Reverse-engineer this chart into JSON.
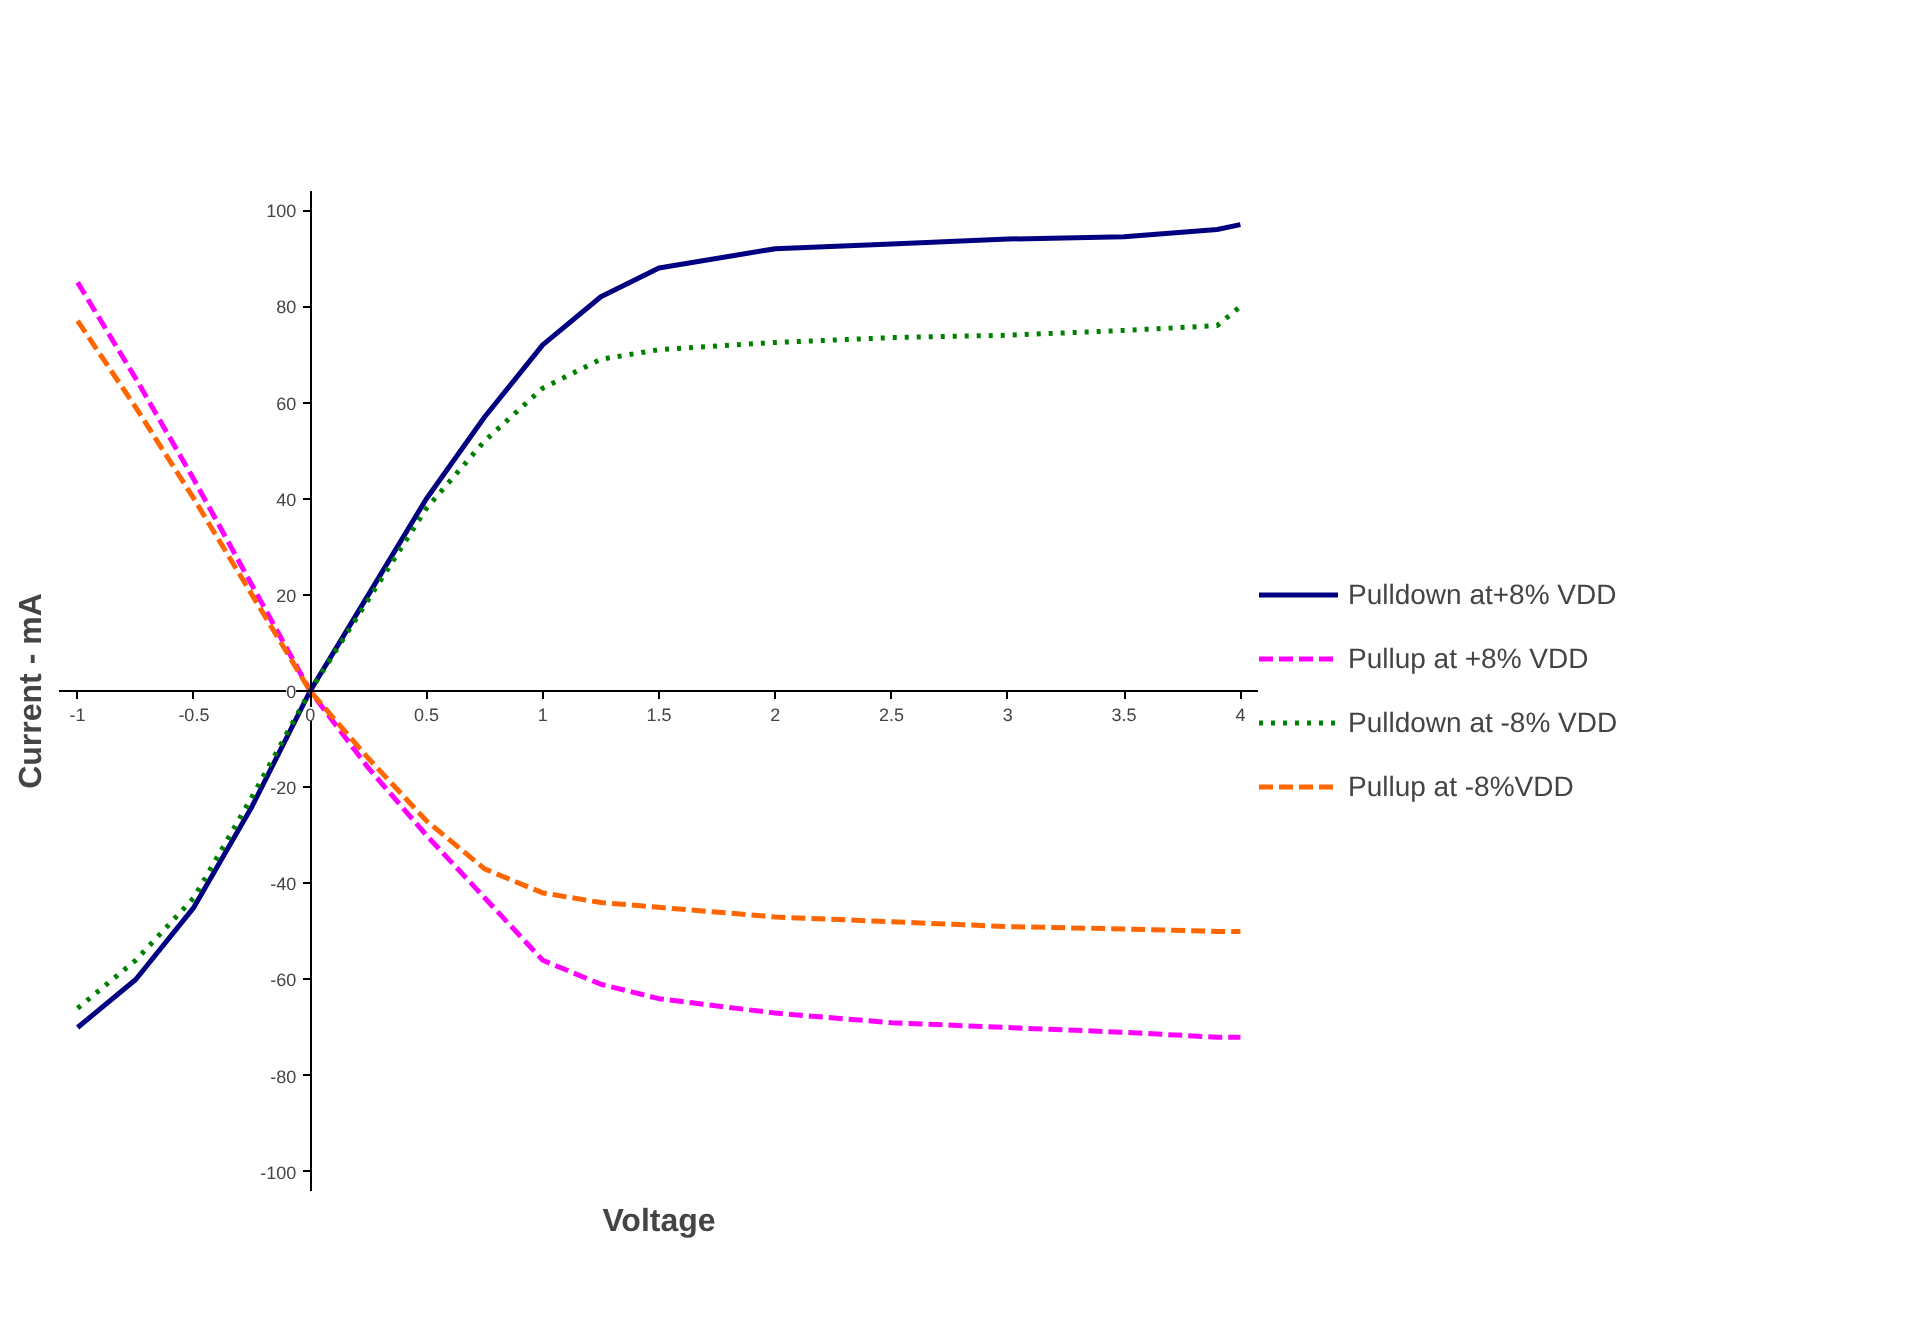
{
  "chart_data": {
    "type": "line",
    "xlabel": "Voltage",
    "ylabel": "Current - mA",
    "xlim": [
      -1.08,
      4.08
    ],
    "ylim": [
      -104,
      104
    ],
    "xticks": [
      -1,
      -0.5,
      0,
      0.5,
      1,
      1.5,
      2,
      2.5,
      3,
      3.5,
      4
    ],
    "yticks": [
      -100,
      -80,
      -60,
      -40,
      -20,
      0,
      20,
      40,
      60,
      80,
      100
    ],
    "grid": false,
    "legend": "right",
    "marker": "none",
    "x": [
      -1,
      -0.75,
      -0.5,
      -0.25,
      0,
      0.25,
      0.5,
      0.75,
      1,
      1.25,
      1.5,
      2,
      2.5,
      3,
      3.5,
      3.9,
      4
    ],
    "series": [
      {
        "name": "Pulldown at+8% VDD",
        "color": "#000080",
        "line_style": "solid",
        "values": [
          -70,
          -60,
          -45,
          -24,
          0,
          20,
          40,
          57,
          72,
          82,
          88,
          92,
          93,
          94,
          94.5,
          96,
          97
        ]
      },
      {
        "name": "Pullup at +8% VDD",
        "color": "#ff00ff",
        "line_style": "dashed",
        "values": [
          85,
          65,
          44,
          22,
          0,
          -16,
          -30,
          -43,
          -56,
          -61,
          -64,
          -67,
          -69,
          -70,
          -71,
          -72,
          -72
        ]
      },
      {
        "name": "Pulldown at -8% VDD",
        "color": "#008000",
        "line_style": "dotted",
        "values": [
          -66,
          -56,
          -43,
          -22,
          0,
          19,
          38,
          52,
          63,
          69,
          71,
          72.5,
          73.5,
          74,
          75,
          76,
          80
        ]
      },
      {
        "name": "Pullup at -8%VDD",
        "color": "#ff6600",
        "line_style": "dashed",
        "values": [
          77,
          59,
          40,
          20,
          0,
          -14,
          -27,
          -37,
          -42,
          -44,
          -45,
          -47,
          -48,
          -49,
          -49.5,
          -50,
          -50
        ]
      }
    ]
  }
}
